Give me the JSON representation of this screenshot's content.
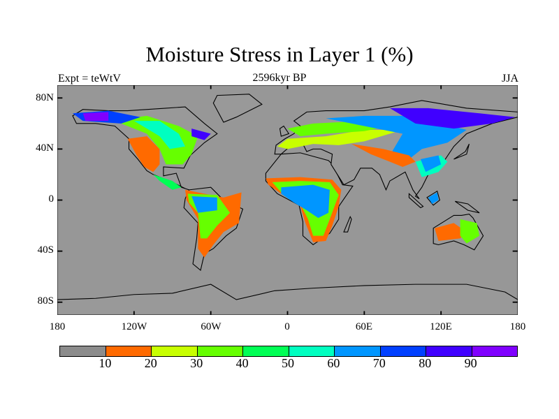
{
  "title": "Moisture Stress in Layer 1 (%)",
  "left_string": "Expt = teWtV",
  "center_string": "2596kyr BP",
  "right_string": "JJA",
  "lat_labels": [
    "80N",
    "40N",
    "0",
    "40S",
    "80S"
  ],
  "lon_labels": [
    "180",
    "120W",
    "60W",
    "0",
    "60E",
    "120E",
    "180"
  ],
  "colorbar": {
    "labels": [
      "10",
      "20",
      "30",
      "40",
      "50",
      "60",
      "70",
      "80",
      "90"
    ],
    "colors": [
      "#8c8c8c",
      "#ff6a00",
      "#c8ff00",
      "#66ff00",
      "#00ff55",
      "#00ffc0",
      "#0096ff",
      "#0040ff",
      "#4000ff",
      "#8000ff"
    ]
  },
  "colors": {
    "ocean": "#979797",
    "land_low": "#8c8c8c"
  }
}
